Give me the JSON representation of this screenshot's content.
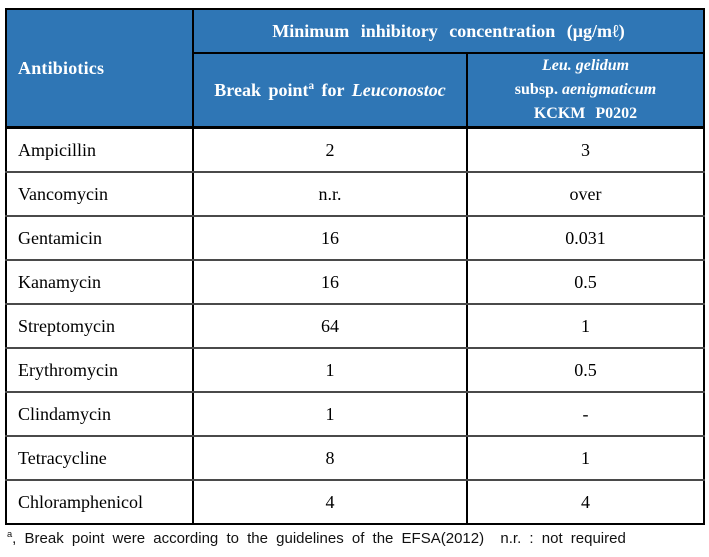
{
  "table": {
    "header": {
      "antibiotics_label": "Antibiotics",
      "mic_title": "Minimum inhibitory concentration (μg/mℓ)",
      "breakpoint": {
        "prefix": "Break point",
        "sup_marker": "a",
        "mid": "for",
        "species_italic": "Leuconostoc"
      },
      "strain": {
        "line1_italic": "Leu. gelidum",
        "line2_prefix": "subsp.",
        "line2_italic": "aenigmaticum",
        "line3": "KCKM P0202"
      }
    },
    "columns": [
      "Antibiotics",
      "Break point for Leuconostoc",
      "Leu. gelidum subsp. aenigmaticum KCKM P0202"
    ],
    "rows": [
      {
        "name": "Ampicillin",
        "breakpoint": "2",
        "mic": "3"
      },
      {
        "name": "Vancomycin",
        "breakpoint": "n.r.",
        "mic": "over"
      },
      {
        "name": "Gentamicin",
        "breakpoint": "16",
        "mic": "0.031"
      },
      {
        "name": "Kanamycin",
        "breakpoint": "16",
        "mic": "0.5"
      },
      {
        "name": "Streptomycin",
        "breakpoint": "64",
        "mic": "1"
      },
      {
        "name": "Erythromycin",
        "breakpoint": "1",
        "mic": "0.5"
      },
      {
        "name": "Clindamycin",
        "breakpoint": "1",
        "mic": "-"
      },
      {
        "name": "Tetracycline",
        "breakpoint": "8",
        "mic": "1"
      },
      {
        "name": "Chloramphenicol",
        "breakpoint": "4",
        "mic": "4"
      }
    ]
  },
  "footnote": {
    "sup_marker": "a",
    "text": ", Break point were according to the guidelines of the EFSA(2012)  n.r. : not required"
  },
  "colors": {
    "header_bg": "#2F76B5",
    "header_text": "#FFFFFF",
    "border_dark": "#000000",
    "row_divider": "#4A4A4A"
  }
}
